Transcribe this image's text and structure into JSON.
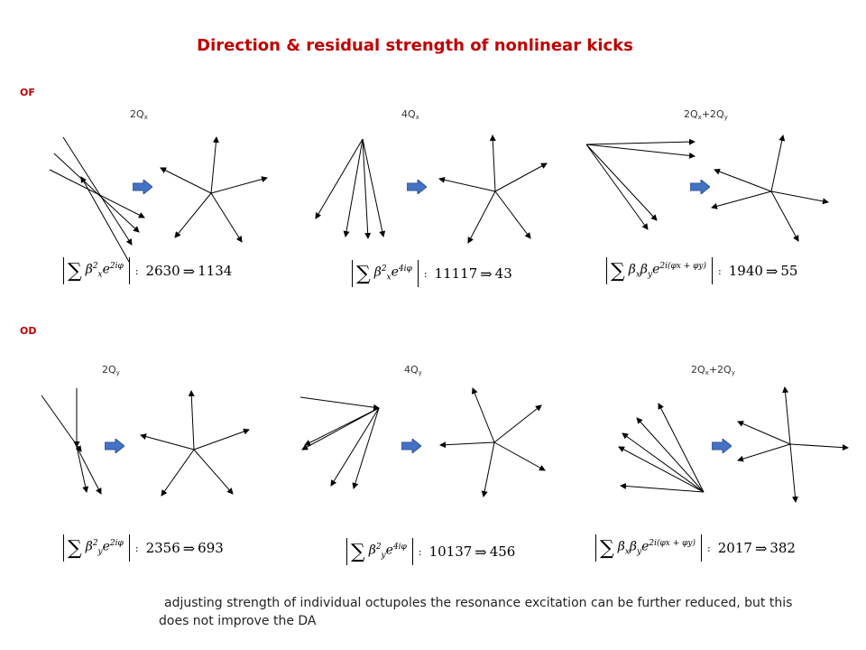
{
  "title": "Direction & residual strength of nonlinear kicks",
  "sections": {
    "of": {
      "label": "OF",
      "resonances": [
        {
          "main": "2Q",
          "sub": "x",
          "rest": ""
        },
        {
          "main": "4Q",
          "sub": "x",
          "rest": ""
        },
        {
          "main": "2Q",
          "sub": "x",
          "rest": "+2Q",
          "sub2": "y"
        }
      ],
      "formulas": [
        {
          "sum": "∑",
          "expr_base": "β",
          "expr_sub": "x",
          "expr_sup": "2",
          "exp_base": "e",
          "exp_sup": "2iφ",
          "colon": ":",
          "before": "2630",
          "implies": "⇒",
          "after": "1134"
        },
        {
          "sum": "∑",
          "expr_base": "β",
          "expr_sub": "x",
          "expr_sup": "2",
          "exp_base": "e",
          "exp_sup": "4iφ",
          "colon": ":",
          "before": "11117",
          "implies": "⇒",
          "after": "43"
        },
        {
          "sum": "∑",
          "expr_base": "β",
          "expr_sub": "x",
          "expr_sup": "",
          "expr2_base": "β",
          "expr2_sub": "y",
          "exp_base": "e",
          "exp_sup": "2i(φx + φy)",
          "colon": ":",
          "before": "1940",
          "implies": "⇒",
          "after": "55"
        }
      ]
    },
    "od": {
      "label": "OD",
      "resonances": [
        {
          "main": "2Q",
          "sub": "y",
          "rest": ""
        },
        {
          "main": "4Q",
          "sub": "y",
          "rest": ""
        },
        {
          "main": "2Q",
          "sub": "x",
          "rest": "+2Q",
          "sub2": "y"
        }
      ],
      "formulas": [
        {
          "sum": "∑",
          "expr_base": "β",
          "expr_sub": "y",
          "expr_sup": "2",
          "exp_base": "e",
          "exp_sup": "2iφ",
          "colon": ":",
          "before": "2356",
          "implies": "⇒",
          "after": "693"
        },
        {
          "sum": "∑",
          "expr_base": "β",
          "expr_sub": "y",
          "expr_sup": "2",
          "exp_base": "e",
          "exp_sup": "4iφ",
          "colon": ":",
          "before": "10137",
          "implies": "⇒",
          "after": "456"
        },
        {
          "sum": "∑",
          "expr_base": "β",
          "expr_sub": "x",
          "expr_sup": "",
          "expr2_base": "β",
          "expr2_sub": "y",
          "exp_base": "e",
          "exp_sup": "2i(φx + φy)",
          "colon": ":",
          "before": "2017",
          "implies": "⇒",
          "after": "382"
        }
      ]
    }
  },
  "note": {
    "bullet": "",
    "text": "adjusting strength of individual octupoles the resonance excitation can be further reduced, but this does not improve the DA"
  },
  "colors": {
    "title": "#c00000",
    "section_label": "#c00000",
    "arrow_fill": "#4472c4"
  },
  "icons": {
    "transition_arrow": "right-block-arrow",
    "bullet": "square-bullet"
  }
}
